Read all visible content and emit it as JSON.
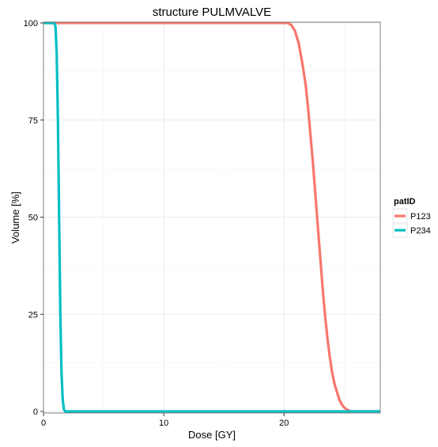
{
  "chart_data": {
    "type": "line",
    "title": "structure PULMVALVE",
    "xlabel": "Dose [GY]",
    "ylabel": "Volume [%]",
    "xlim": [
      0,
      28
    ],
    "ylim": [
      0,
      100
    ],
    "x_ticks": [
      0,
      10,
      20
    ],
    "x_tick_labels": [
      "0",
      "10",
      "20"
    ],
    "y_ticks": [
      0,
      25,
      50,
      75,
      100
    ],
    "y_tick_labels": [
      "0",
      "25",
      "50",
      "75",
      "100"
    ],
    "grid": true,
    "legend": {
      "title": "patID",
      "placement": "right"
    },
    "series": [
      {
        "name": "P123",
        "color": "#f8766d",
        "x": [
          0,
          20.3,
          20.6,
          20.9,
          21.2,
          21.5,
          21.8,
          22.0,
          22.2,
          22.4,
          22.6,
          22.8,
          23.0,
          23.2,
          23.4,
          23.6,
          23.8,
          24.0,
          24.2,
          24.4,
          24.6,
          24.8,
          25.0,
          25.2,
          25.4,
          25.6,
          26.0,
          28
        ],
        "y": [
          100,
          100,
          99.5,
          98,
          95,
          90,
          84,
          78,
          71,
          64,
          56,
          48,
          40,
          32,
          25,
          19,
          14,
          10,
          7,
          5,
          3,
          1.8,
          1,
          0.5,
          0.2,
          0,
          0,
          0
        ]
      },
      {
        "name": "P234",
        "color": "#00bfc4",
        "x": [
          0,
          0.9,
          1.0,
          1.1,
          1.2,
          1.3,
          1.4,
          1.5,
          1.6,
          1.7,
          1.8,
          28
        ],
        "y": [
          100,
          100,
          99,
          92,
          75,
          50,
          25,
          10,
          3,
          0.5,
          0,
          0
        ]
      }
    ]
  }
}
